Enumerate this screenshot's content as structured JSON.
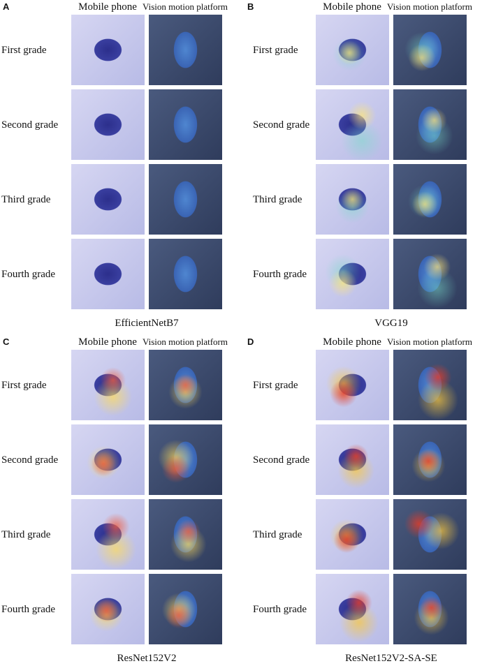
{
  "panels": [
    {
      "letter": "A",
      "columns": [
        "Mobile phone",
        "Vision motion platform"
      ],
      "rows": [
        "First grade",
        "Second grade",
        "Third grade",
        "Fourth grade"
      ],
      "caption": "EfficientNetB7"
    },
    {
      "letter": "B",
      "columns": [
        "Mobile phone",
        "Vision motion platform"
      ],
      "rows": [
        "First grade",
        "Second grade",
        "Third grade",
        "Fourth grade"
      ],
      "caption": "VGG19"
    },
    {
      "letter": "C",
      "columns": [
        "Mobile phone",
        "Vision motion platform"
      ],
      "rows": [
        "First grade",
        "Second grade",
        "Third grade",
        "Fourth grade"
      ],
      "caption": "ResNet152V2"
    },
    {
      "letter": "D",
      "columns": [
        "Mobile phone",
        "Vision motion platform"
      ],
      "rows": [
        "First grade",
        "Second grade",
        "Third grade",
        "Fourth grade"
      ],
      "caption": "ResNet152V2-SA-SE"
    }
  ]
}
